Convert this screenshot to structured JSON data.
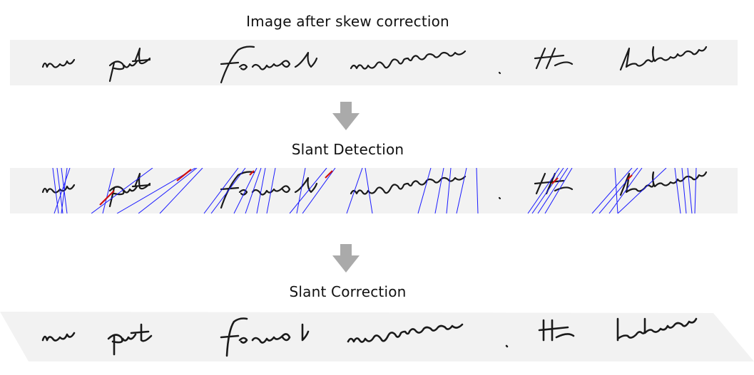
{
  "steps": {
    "skew_caption": "Image after skew correction",
    "detect_caption": "Slant Detection",
    "correct_caption": "Slant Correction"
  },
  "handwriting_words": [
    "now",
    "put",
    "forward",
    "nominees",
    ".",
    "He",
    "believes"
  ],
  "colors": {
    "paper": "#f2f2f2",
    "ink": "#1a1a1a",
    "detected_lines": "#1a1aff",
    "detected_segments": "#d01010",
    "arrow": "#aaaaaa"
  },
  "icons": {
    "flow_arrow": "down-arrow-icon"
  }
}
